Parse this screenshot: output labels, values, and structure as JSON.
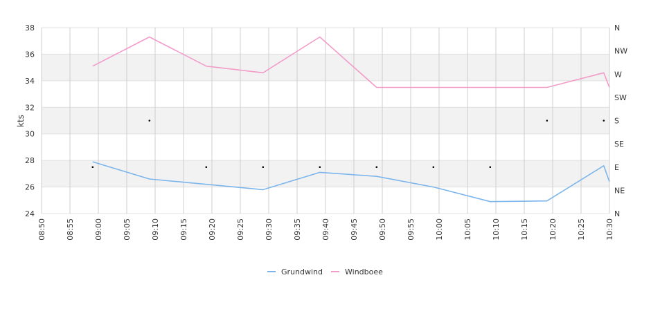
{
  "chart_data": {
    "type": "line",
    "ylabel": "kts",
    "ylim": [
      24,
      38
    ],
    "y_ticks": [
      "24",
      "26",
      "28",
      "30",
      "32",
      "34",
      "36",
      "38"
    ],
    "x_ticks": [
      "08:50",
      "08:55",
      "09:00",
      "09:05",
      "09:10",
      "09:15",
      "09:20",
      "09:25",
      "09:30",
      "09:35",
      "09:40",
      "09:45",
      "09:50",
      "09:55",
      "10:00",
      "10:05",
      "10:10",
      "10:15",
      "10:20",
      "10:25",
      "10:30"
    ],
    "xlim": [
      "08:50",
      "10:30"
    ],
    "y2_ticks": [
      "N",
      "NW",
      "W",
      "SW",
      "S",
      "SE",
      "E",
      "NE",
      "N"
    ],
    "y2lim": [
      0,
      360
    ],
    "series": [
      {
        "name": "Grundwind",
        "color": "#7cb5ec",
        "x": [
          "08:59",
          "09:09",
          "09:19",
          "09:29",
          "09:39",
          "09:49",
          "09:59",
          "10:09",
          "10:19",
          "10:29",
          "10:30"
        ],
        "values": [
          27.9,
          26.6,
          26.2,
          25.8,
          27.1,
          26.8,
          26.0,
          24.9,
          24.95,
          27.6,
          26.4
        ]
      },
      {
        "name": "Windboee",
        "color": "#f29cc8",
        "x": [
          "08:59",
          "09:09",
          "09:19",
          "09:29",
          "09:39",
          "09:49",
          "09:59",
          "10:09",
          "10:19",
          "10:29",
          "10:30"
        ],
        "values": [
          35.1,
          37.3,
          35.1,
          34.6,
          37.3,
          33.5,
          33.5,
          33.5,
          33.5,
          34.6,
          33.5
        ]
      }
    ],
    "direction": {
      "x": [
        "08:59",
        "09:09",
        "09:19",
        "09:29",
        "09:39",
        "09:49",
        "09:59",
        "10:09",
        "10:19",
        "10:29"
      ],
      "degrees": [
        90,
        180,
        90,
        90,
        90,
        90,
        90,
        90,
        180,
        180
      ]
    },
    "grid": true,
    "legend": "bottom-center"
  }
}
